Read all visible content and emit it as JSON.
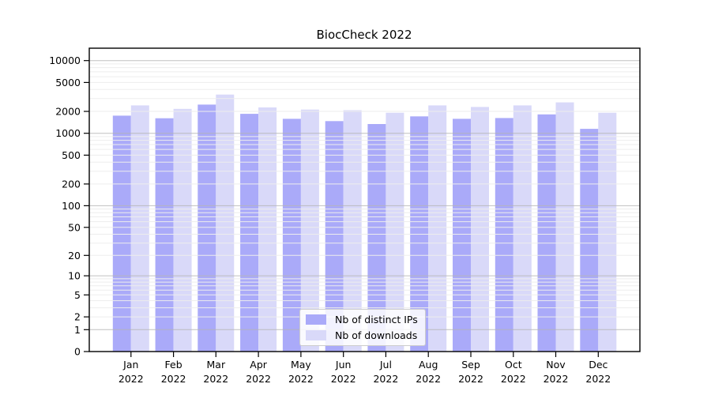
{
  "chart_data": {
    "type": "bar",
    "title": "BiocCheck 2022",
    "categories": [
      "Jan",
      "Feb",
      "Mar",
      "Apr",
      "May",
      "Jun",
      "Jul",
      "Aug",
      "Sep",
      "Oct",
      "Nov",
      "Dec"
    ],
    "year_label": "2022",
    "series": [
      {
        "name": "Nb of distinct IPs",
        "color": "#aaaaf9",
        "values": [
          1750,
          1610,
          2480,
          1850,
          1580,
          1470,
          1340,
          1710,
          1580,
          1620,
          1820,
          1150
        ]
      },
      {
        "name": "Nb of downloads",
        "color": "#d9d9f9",
        "values": [
          2420,
          2170,
          3410,
          2270,
          2120,
          2080,
          1920,
          2420,
          2300,
          2420,
          2660,
          1920
        ]
      }
    ],
    "y_ticks": [
      0,
      1,
      2,
      5,
      10,
      20,
      50,
      100,
      200,
      500,
      1000,
      2000,
      5000,
      10000
    ],
    "y_scale": "log1p",
    "ylim": [
      0,
      14800
    ],
    "grid": "on",
    "legend_position": "lower center",
    "colors": {
      "major_grid": "#b5b5b5",
      "minor_grid": "#ededed",
      "axis": "#000000",
      "background": "#ffffff"
    }
  }
}
